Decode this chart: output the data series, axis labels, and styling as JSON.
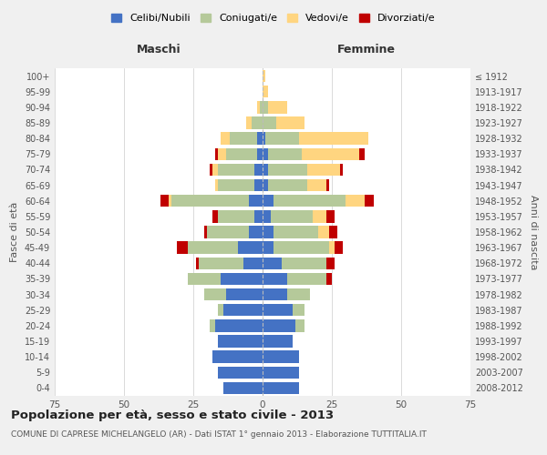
{
  "age_groups": [
    "0-4",
    "5-9",
    "10-14",
    "15-19",
    "20-24",
    "25-29",
    "30-34",
    "35-39",
    "40-44",
    "45-49",
    "50-54",
    "55-59",
    "60-64",
    "65-69",
    "70-74",
    "75-79",
    "80-84",
    "85-89",
    "90-94",
    "95-99",
    "100+"
  ],
  "birth_years": [
    "2008-2012",
    "2003-2007",
    "1998-2002",
    "1993-1997",
    "1988-1992",
    "1983-1987",
    "1978-1982",
    "1973-1977",
    "1968-1972",
    "1963-1967",
    "1958-1962",
    "1953-1957",
    "1948-1952",
    "1943-1947",
    "1938-1942",
    "1933-1937",
    "1928-1932",
    "1923-1927",
    "1918-1922",
    "1913-1917",
    "≤ 1912"
  ],
  "maschi": {
    "celibi": [
      14,
      16,
      18,
      16,
      17,
      14,
      13,
      15,
      7,
      9,
      5,
      3,
      5,
      3,
      3,
      2,
      2,
      0,
      0,
      0,
      0
    ],
    "coniugati": [
      0,
      0,
      0,
      0,
      2,
      2,
      8,
      12,
      16,
      18,
      15,
      13,
      28,
      13,
      13,
      11,
      10,
      4,
      1,
      0,
      0
    ],
    "vedovi": [
      0,
      0,
      0,
      0,
      0,
      0,
      0,
      0,
      0,
      0,
      0,
      0,
      1,
      1,
      2,
      3,
      3,
      2,
      1,
      0,
      0
    ],
    "divorziati": [
      0,
      0,
      0,
      0,
      0,
      0,
      0,
      0,
      1,
      4,
      1,
      2,
      3,
      0,
      1,
      1,
      0,
      0,
      0,
      0,
      0
    ]
  },
  "femmine": {
    "nubili": [
      13,
      13,
      13,
      11,
      12,
      11,
      9,
      9,
      7,
      4,
      4,
      3,
      4,
      2,
      2,
      2,
      1,
      0,
      0,
      0,
      0
    ],
    "coniugate": [
      0,
      0,
      0,
      0,
      3,
      4,
      8,
      14,
      16,
      20,
      16,
      15,
      26,
      14,
      14,
      12,
      12,
      5,
      2,
      0,
      0
    ],
    "vedove": [
      0,
      0,
      0,
      0,
      0,
      0,
      0,
      0,
      0,
      2,
      4,
      5,
      7,
      7,
      12,
      21,
      25,
      10,
      7,
      2,
      1
    ],
    "divorziate": [
      0,
      0,
      0,
      0,
      0,
      0,
      0,
      2,
      3,
      3,
      3,
      3,
      3,
      1,
      1,
      2,
      0,
      0,
      0,
      0,
      0
    ]
  },
  "colors": {
    "celibi_nubili": "#4472C4",
    "coniugati": "#B5C99A",
    "vedovi": "#FFD580",
    "divorziati": "#C00000"
  },
  "xlim": 75,
  "title": "Popolazione per età, sesso e stato civile - 2013",
  "subtitle": "COMUNE DI CAPRESE MICHELANGELO (AR) - Dati ISTAT 1° gennaio 2013 - Elaborazione TUTTITALIA.IT",
  "ylabel_left": "Fasce di età",
  "ylabel_right": "Anni di nascita",
  "xlabel_maschi": "Maschi",
  "xlabel_femmine": "Femmine",
  "legend_labels": [
    "Celibi/Nubili",
    "Coniugati/e",
    "Vedovi/e",
    "Divorziati/e"
  ],
  "bg_color": "#f0f0f0",
  "bar_bg_color": "#ffffff"
}
